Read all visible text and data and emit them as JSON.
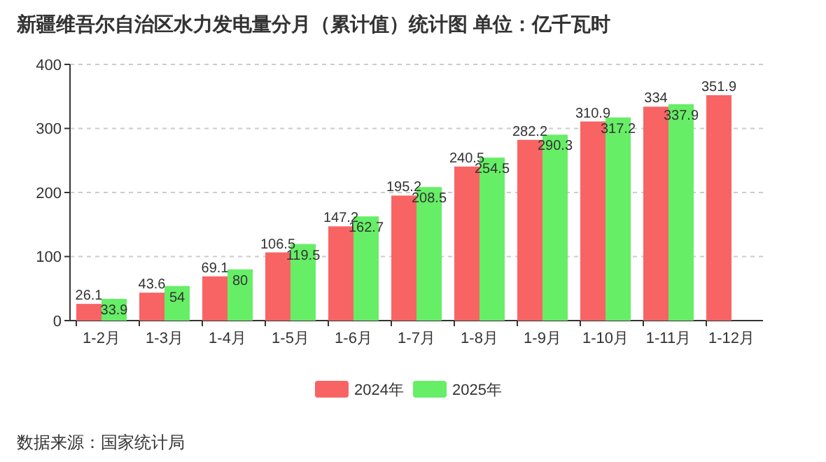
{
  "chart_data": {
    "type": "bar",
    "title": "新疆维吾尔自治区水力发电量分月（累计值）统计图 单位：亿千瓦时",
    "categories": [
      "1-2月",
      "1-3月",
      "1-4月",
      "1-5月",
      "1-6月",
      "1-7月",
      "1-8月",
      "1-9月",
      "1-10月",
      "1-11月",
      "1-12月"
    ],
    "series": [
      {
        "name": "2024年",
        "color": "#f86464",
        "values": [
          26.1,
          43.6,
          69.1,
          106.5,
          147.2,
          195.2,
          240.5,
          282.2,
          310.9,
          334,
          351.9
        ]
      },
      {
        "name": "2025年",
        "color": "#66ee66",
        "values": [
          33.9,
          54,
          80,
          119.5,
          162.7,
          208.5,
          254.5,
          290.3,
          317.2,
          337.9,
          null
        ]
      }
    ],
    "ylim": [
      0,
      400
    ],
    "yticks": [
      0,
      100,
      200,
      300,
      400
    ],
    "grid": "y",
    "legend": "bottom",
    "data_labels": true,
    "annotations": [
      "数据来源：国家统计局"
    ]
  }
}
